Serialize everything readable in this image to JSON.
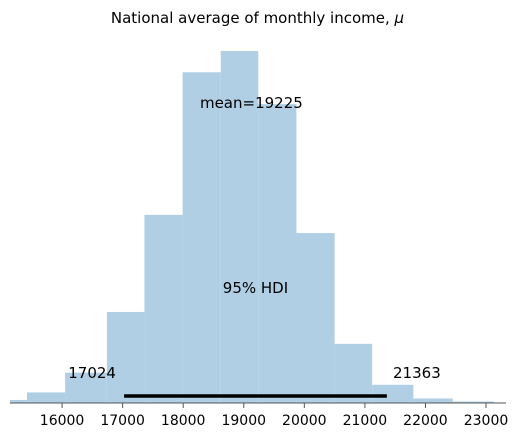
{
  "chart_data": {
    "type": "bar",
    "title": "National average of monthly income, ",
    "title_symbol": "μ",
    "bins": [
      {
        "x0": 15140,
        "x1": 15420,
        "count": 2
      },
      {
        "x0": 15420,
        "x1": 16050,
        "count": 7
      },
      {
        "x0": 16050,
        "x1": 16740,
        "count": 20
      },
      {
        "x0": 16740,
        "x1": 17360,
        "count": 60
      },
      {
        "x0": 17360,
        "x1": 17990,
        "count": 124
      },
      {
        "x0": 17990,
        "x1": 18620,
        "count": 218
      },
      {
        "x0": 18620,
        "x1": 19240,
        "count": 232
      },
      {
        "x0": 19240,
        "x1": 19870,
        "count": 197
      },
      {
        "x0": 19870,
        "x1": 20500,
        "count": 112
      },
      {
        "x0": 20500,
        "x1": 21120,
        "count": 39
      },
      {
        "x0": 21120,
        "x1": 21800,
        "count": 12
      },
      {
        "x0": 21800,
        "x1": 22450,
        "count": 3
      },
      {
        "x0": 22450,
        "x1": 23130,
        "count": 1
      }
    ],
    "xticks": [
      16000,
      17000,
      18000,
      19000,
      20000,
      21000,
      22000,
      23000
    ],
    "xlim": [
      15140,
      23330
    ],
    "ylim": [
      0,
      232
    ],
    "mean_label": "mean=19225",
    "hdi": {
      "label": "95% HDI",
      "low": 17024,
      "high": 21363,
      "low_label": "17024",
      "high_label": "21363"
    },
    "bar_color": "#b0cfe4",
    "axis_color": "#555555",
    "hdi_color": "#000000"
  }
}
